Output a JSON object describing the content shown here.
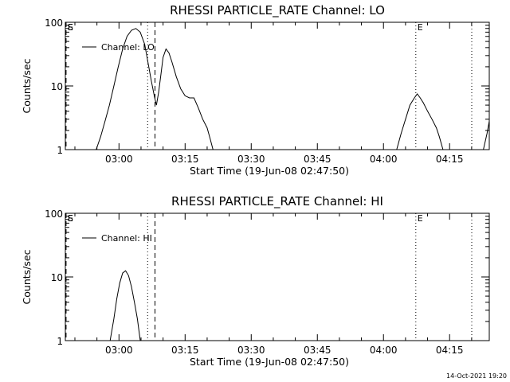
{
  "chart_data": [
    {
      "type": "line",
      "title": "RHESSI PARTICLE_RATE Channel: LO",
      "xlabel": "Start Time (19-Jun-08 02:47:50)",
      "ylabel": "Counts/sec",
      "yscale": "log",
      "ylim": [
        1,
        100
      ],
      "xlim": [
        "02:47:50",
        "04:24:00"
      ],
      "xticks": [
        "03:00",
        "03:15",
        "03:30",
        "03:45",
        "04:00",
        "04:15"
      ],
      "yticks": [
        "1",
        "10",
        "100"
      ],
      "legend": "top-left",
      "series": [
        {
          "name": "Channel: LO",
          "points": [
            [
              "02:54:50",
              1
            ],
            [
              "02:55:50",
              1.6
            ],
            [
              "02:56:50",
              2.8
            ],
            [
              "02:57:50",
              5
            ],
            [
              "02:58:50",
              10
            ],
            [
              "02:59:50",
              20
            ],
            [
              "03:00:50",
              38
            ],
            [
              "03:01:50",
              60
            ],
            [
              "03:02:50",
              75
            ],
            [
              "03:03:50",
              80
            ],
            [
              "03:04:50",
              70
            ],
            [
              "03:05:50",
              45
            ],
            [
              "03:06:30",
              25
            ],
            [
              "03:07:20",
              12
            ],
            [
              "03:08:00",
              7
            ],
            [
              "03:08:30",
              5
            ],
            [
              "03:09:00",
              8
            ],
            [
              "03:09:30",
              15
            ],
            [
              "03:10:00",
              28
            ],
            [
              "03:10:40",
              38
            ],
            [
              "03:11:20",
              33
            ],
            [
              "03:12:00",
              24
            ],
            [
              "03:13:00",
              14
            ],
            [
              "03:14:00",
              9
            ],
            [
              "03:15:00",
              7
            ],
            [
              "03:16:00",
              6.5
            ],
            [
              "03:17:00",
              6.5
            ],
            [
              "03:18:00",
              4.5
            ],
            [
              "03:19:00",
              3
            ],
            [
              "03:20:00",
              2.2
            ],
            [
              "03:20:40",
              1.5
            ],
            [
              "03:21:20",
              1
            ],
            [
              "04:03:00",
              1
            ],
            [
              "04:04:00",
              1.8
            ],
            [
              "04:05:00",
              3
            ],
            [
              "04:06:00",
              5
            ],
            [
              "04:07:00",
              6.5
            ],
            [
              "04:07:40",
              7.5
            ],
            [
              "04:08:20",
              6.5
            ],
            [
              "04:09:00",
              5.5
            ],
            [
              "04:10:00",
              4
            ],
            [
              "04:11:00",
              3
            ],
            [
              "04:12:00",
              2.2
            ],
            [
              "04:12:40",
              1.6
            ],
            [
              "04:13:30",
              1
            ],
            [
              "04:22:40",
              1
            ],
            [
              "04:23:30",
              1.8
            ],
            [
              "04:24:00",
              2.8
            ]
          ]
        }
      ],
      "markers": {
        "dashed": [
          "02:48:00",
          "03:08:10"
        ],
        "dotted": [
          "03:06:30",
          "04:07:20",
          "04:24:00"
        ],
        "flags": [
          {
            "label": "E",
            "at": "04:07:20"
          },
          {
            "label": "E",
            "at": "02:48:00"
          },
          {
            "label": "S",
            "at": "02:48:00"
          }
        ]
      }
    },
    {
      "type": "line",
      "title": "RHESSI PARTICLE_RATE Channel: HI",
      "xlabel": "Start Time (19-Jun-08 02:47:50)",
      "ylabel": "Counts/sec",
      "yscale": "log",
      "ylim": [
        1,
        100
      ],
      "xlim": [
        "02:47:50",
        "04:24:00"
      ],
      "xticks": [
        "03:00",
        "03:15",
        "03:30",
        "03:45",
        "04:00",
        "04:15"
      ],
      "yticks": [
        "1",
        "10",
        "100"
      ],
      "legend": "top-left",
      "series": [
        {
          "name": "Channel: HI",
          "points": [
            [
              "02:58:00",
              1
            ],
            [
              "02:58:50",
              2.2
            ],
            [
              "02:59:30",
              4.5
            ],
            [
              "03:00:10",
              8
            ],
            [
              "03:00:50",
              11.5
            ],
            [
              "03:01:30",
              12.5
            ],
            [
              "03:02:10",
              10.5
            ],
            [
              "03:02:50",
              7
            ],
            [
              "03:03:30",
              4
            ],
            [
              "03:04:10",
              2.2
            ],
            [
              "03:04:50",
              1
            ]
          ]
        }
      ],
      "markers": {
        "dashed": [
          "02:48:00",
          "03:08:10"
        ],
        "dotted": [
          "03:06:30",
          "04:07:20",
          "04:24:00"
        ],
        "flags": [
          {
            "label": "E",
            "at": "04:07:20"
          },
          {
            "label": "E",
            "at": "02:48:00"
          },
          {
            "label": "S",
            "at": "02:48:00"
          }
        ]
      }
    }
  ],
  "footer": {
    "timestamp": "14-Oct-2021 19:20"
  }
}
